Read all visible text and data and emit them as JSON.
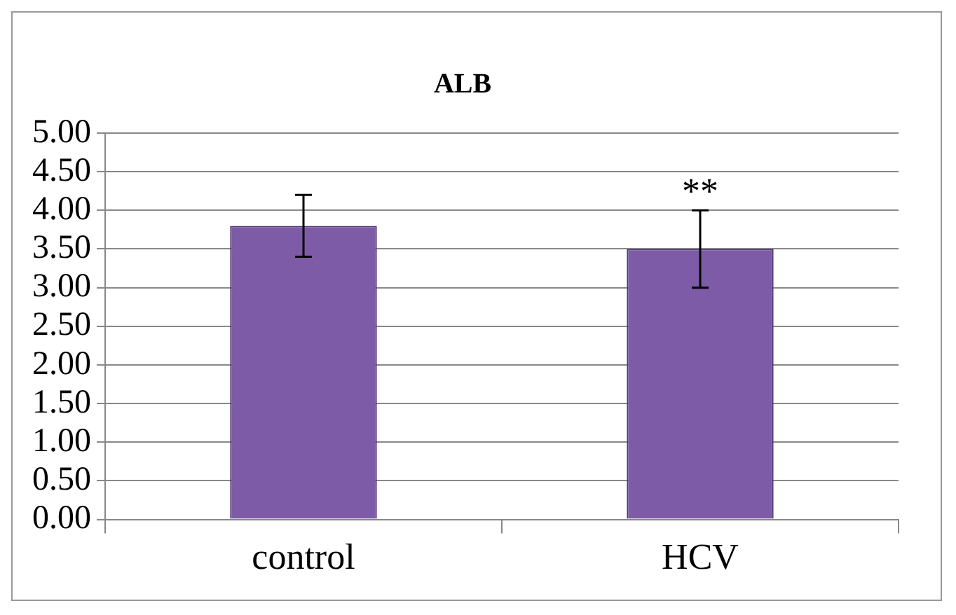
{
  "chart_data": {
    "type": "bar",
    "title": "ALB",
    "categories": [
      "control",
      "HCV"
    ],
    "values": [
      3.8,
      3.5
    ],
    "errors": [
      0.4,
      0.5
    ],
    "color": "#7d5ba6",
    "ylim": [
      0,
      5
    ],
    "yticks": [
      {
        "value": 0,
        "label": "0.00"
      },
      {
        "value": 0.5,
        "label": "0.50"
      },
      {
        "value": 1,
        "label": "1.00"
      },
      {
        "value": 1.5,
        "label": "1.50"
      },
      {
        "value": 2,
        "label": "2.00"
      },
      {
        "value": 2.5,
        "label": "2.50"
      },
      {
        "value": 3,
        "label": "3.00"
      },
      {
        "value": 3.5,
        "label": "3.50"
      },
      {
        "value": 4,
        "label": "4.00"
      },
      {
        "value": 4.5,
        "label": "4.50"
      },
      {
        "value": 5,
        "label": "5.00"
      }
    ],
    "grid": "y",
    "legend": false,
    "annotations": [
      "**"
    ]
  }
}
